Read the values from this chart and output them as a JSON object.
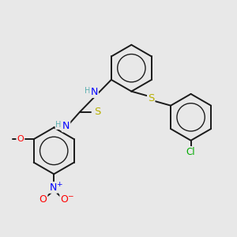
{
  "background_color": "#e8e8e8",
  "bond_color": "#1a1a1a",
  "bond_width": 1.4,
  "atom_colors": {
    "N": "#0000ff",
    "S": "#b8b000",
    "O": "#ff0000",
    "Cl": "#00aa00",
    "C": "#1a1a1a",
    "H": "#5aafaf"
  },
  "font_size": 8.5,
  "fig_bg": "#e8e8e8"
}
